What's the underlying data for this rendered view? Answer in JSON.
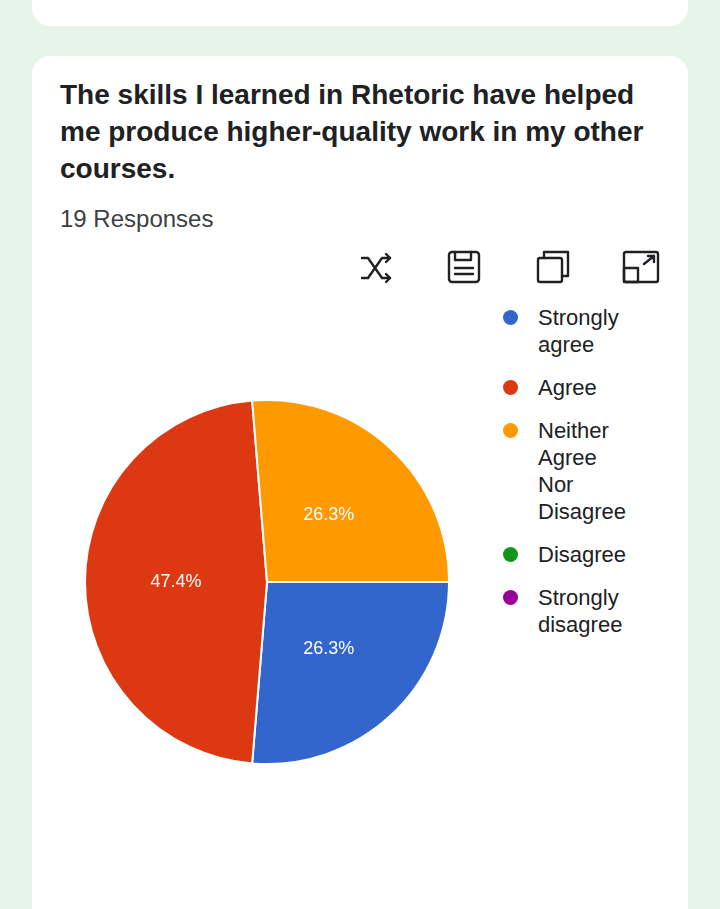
{
  "chart_data": {
    "type": "pie",
    "title": "The skills I learned in Rhetoric have helped me produce higher-quality work in my other courses.",
    "subtitle": "19 Responses",
    "categories": [
      "Strongly agree",
      "Agree",
      "Neither Agree Nor Disagree",
      "Disagree",
      "Strongly disagree"
    ],
    "values": [
      26.3,
      47.4,
      26.3,
      0,
      0
    ],
    "value_labels": [
      "26.3%",
      "47.4%",
      "26.3%",
      null,
      null
    ],
    "colors": [
      "#3366cc",
      "#dc3912",
      "#ff9900",
      "#109618",
      "#990099"
    ],
    "legend": "right",
    "data_labels": true
  }
}
